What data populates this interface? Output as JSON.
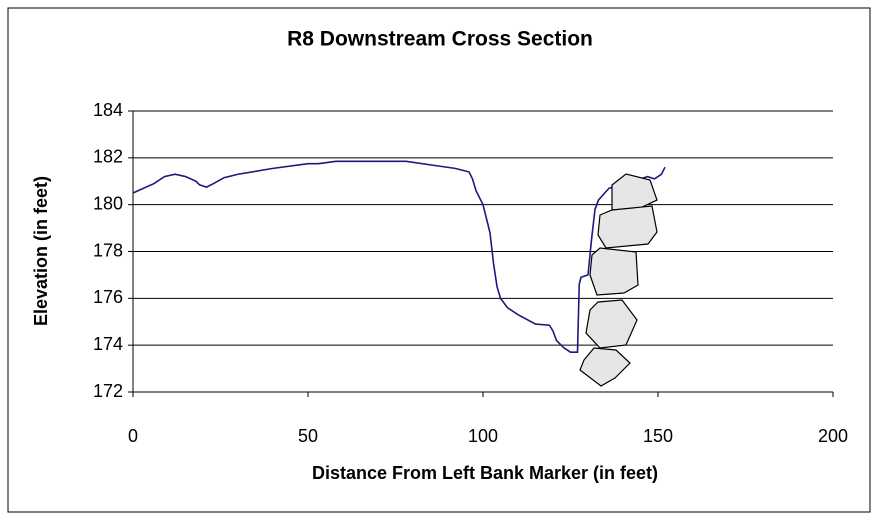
{
  "chart_data": {
    "type": "line",
    "title": "R8 Downstream Cross Section",
    "x_label": "Distance From Left Bank Marker (in feet)",
    "y_label": "Elevation (in feet)",
    "xlim": [
      0,
      200
    ],
    "xticks": [
      0,
      50,
      100,
      150,
      200
    ],
    "ylim": [
      172,
      184
    ],
    "yticks": [
      172,
      174,
      176,
      178,
      180,
      182,
      184
    ],
    "grid": true,
    "series": [
      {
        "color": "#1a1a80",
        "x": [
          0,
          3,
          6,
          9,
          12,
          15,
          18,
          19,
          21,
          23,
          26,
          30,
          40,
          50,
          53,
          58,
          70,
          78,
          85,
          92,
          96,
          97,
          98,
          100,
          102,
          103,
          104,
          105,
          107,
          110,
          115,
          119,
          120,
          121,
          123,
          125,
          127,
          127.5,
          128,
          130,
          131,
          132,
          133,
          136,
          140,
          145,
          147,
          149,
          151,
          152
        ],
        "values": [
          180.5,
          180.7,
          180.9,
          181.2,
          181.3,
          181.2,
          181.0,
          180.85,
          180.75,
          180.9,
          181.15,
          181.3,
          181.55,
          181.75,
          181.75,
          181.85,
          181.85,
          181.85,
          181.7,
          181.55,
          181.4,
          181.1,
          180.6,
          180.0,
          178.8,
          177.5,
          176.5,
          176.0,
          175.6,
          175.3,
          174.9,
          174.85,
          174.6,
          174.2,
          173.9,
          173.7,
          173.7,
          176.6,
          176.9,
          177.0,
          178.5,
          179.8,
          180.2,
          180.7,
          180.9,
          181.1,
          181.2,
          181.1,
          181.3,
          181.6
        ]
      }
    ]
  }
}
